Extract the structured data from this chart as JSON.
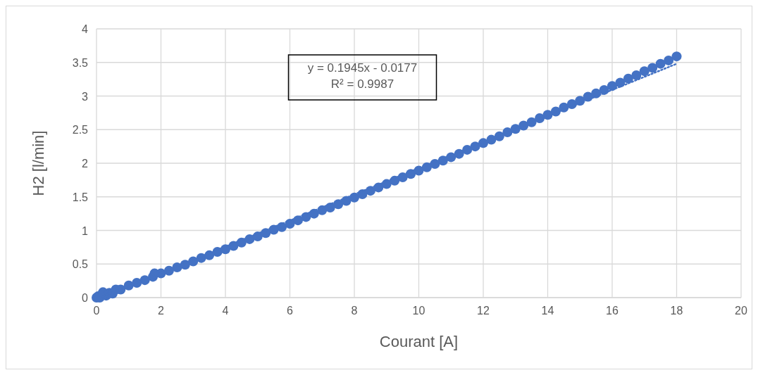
{
  "chart_data": {
    "type": "scatter",
    "xlabel": "Courant [A]",
    "ylabel": "H2 [l/min]",
    "xlim": [
      0,
      20
    ],
    "xticks": [
      0,
      2,
      4,
      6,
      8,
      10,
      12,
      14,
      16,
      18,
      20
    ],
    "ylim": [
      0,
      4
    ],
    "yticks": [
      0,
      0.5,
      1,
      1.5,
      2,
      2.5,
      3,
      3.5,
      4
    ],
    "grid": true,
    "annotations": [
      "y = 0.1945x - 0.0177",
      "R² = 0.9987"
    ],
    "series": [
      {
        "marker": "circle",
        "color": "#4472c4",
        "x": [
          0,
          0.05,
          0.1,
          0.2,
          0.3,
          0.4,
          0.5,
          0.6,
          0.75,
          1.0,
          1.25,
          1.5,
          1.75,
          1.8,
          2.0,
          2.25,
          2.5,
          2.75,
          3.0,
          3.25,
          3.5,
          3.75,
          4.0,
          4.25,
          4.5,
          4.75,
          5.0,
          5.25,
          5.5,
          5.75,
          6.0,
          6.25,
          6.5,
          6.75,
          7.0,
          7.25,
          7.5,
          7.75,
          8.0,
          8.25,
          8.5,
          8.75,
          9.0,
          9.25,
          9.5,
          9.75,
          10,
          10.25,
          10.5,
          10.75,
          11,
          11.25,
          11.5,
          11.75,
          12,
          12.25,
          12.5,
          12.75,
          13,
          13.25,
          13.5,
          13.75,
          14,
          14.25,
          14.5,
          14.75,
          15,
          15.25,
          15.5,
          15.75,
          16,
          16.25,
          16.5,
          16.75,
          17,
          17.25,
          17.5,
          17.75,
          18
        ],
        "values": [
          0,
          0.02,
          0,
          0.08,
          0.03,
          0.07,
          0.06,
          0.12,
          0.12,
          0.18,
          0.22,
          0.26,
          0.31,
          0.36,
          0.36,
          0.4,
          0.45,
          0.49,
          0.54,
          0.59,
          0.63,
          0.68,
          0.72,
          0.77,
          0.82,
          0.87,
          0.91,
          0.96,
          1.01,
          1.05,
          1.1,
          1.15,
          1.2,
          1.25,
          1.3,
          1.34,
          1.39,
          1.44,
          1.49,
          1.54,
          1.59,
          1.64,
          1.69,
          1.74,
          1.79,
          1.84,
          1.89,
          1.94,
          1.99,
          2.04,
          2.09,
          2.14,
          2.2,
          2.25,
          2.3,
          2.35,
          2.4,
          2.46,
          2.51,
          2.56,
          2.61,
          2.67,
          2.72,
          2.77,
          2.83,
          2.88,
          2.93,
          2.99,
          3.04,
          3.09,
          3.15,
          3.2,
          3.26,
          3.31,
          3.37,
          3.42,
          3.48,
          3.53,
          3.59
        ]
      },
      {
        "type": "line",
        "marker": "none",
        "color": "#4472c4",
        "line_style": "dotted",
        "x": [
          0.1,
          18
        ],
        "values": [
          0.0,
          3.48
        ]
      }
    ]
  }
}
